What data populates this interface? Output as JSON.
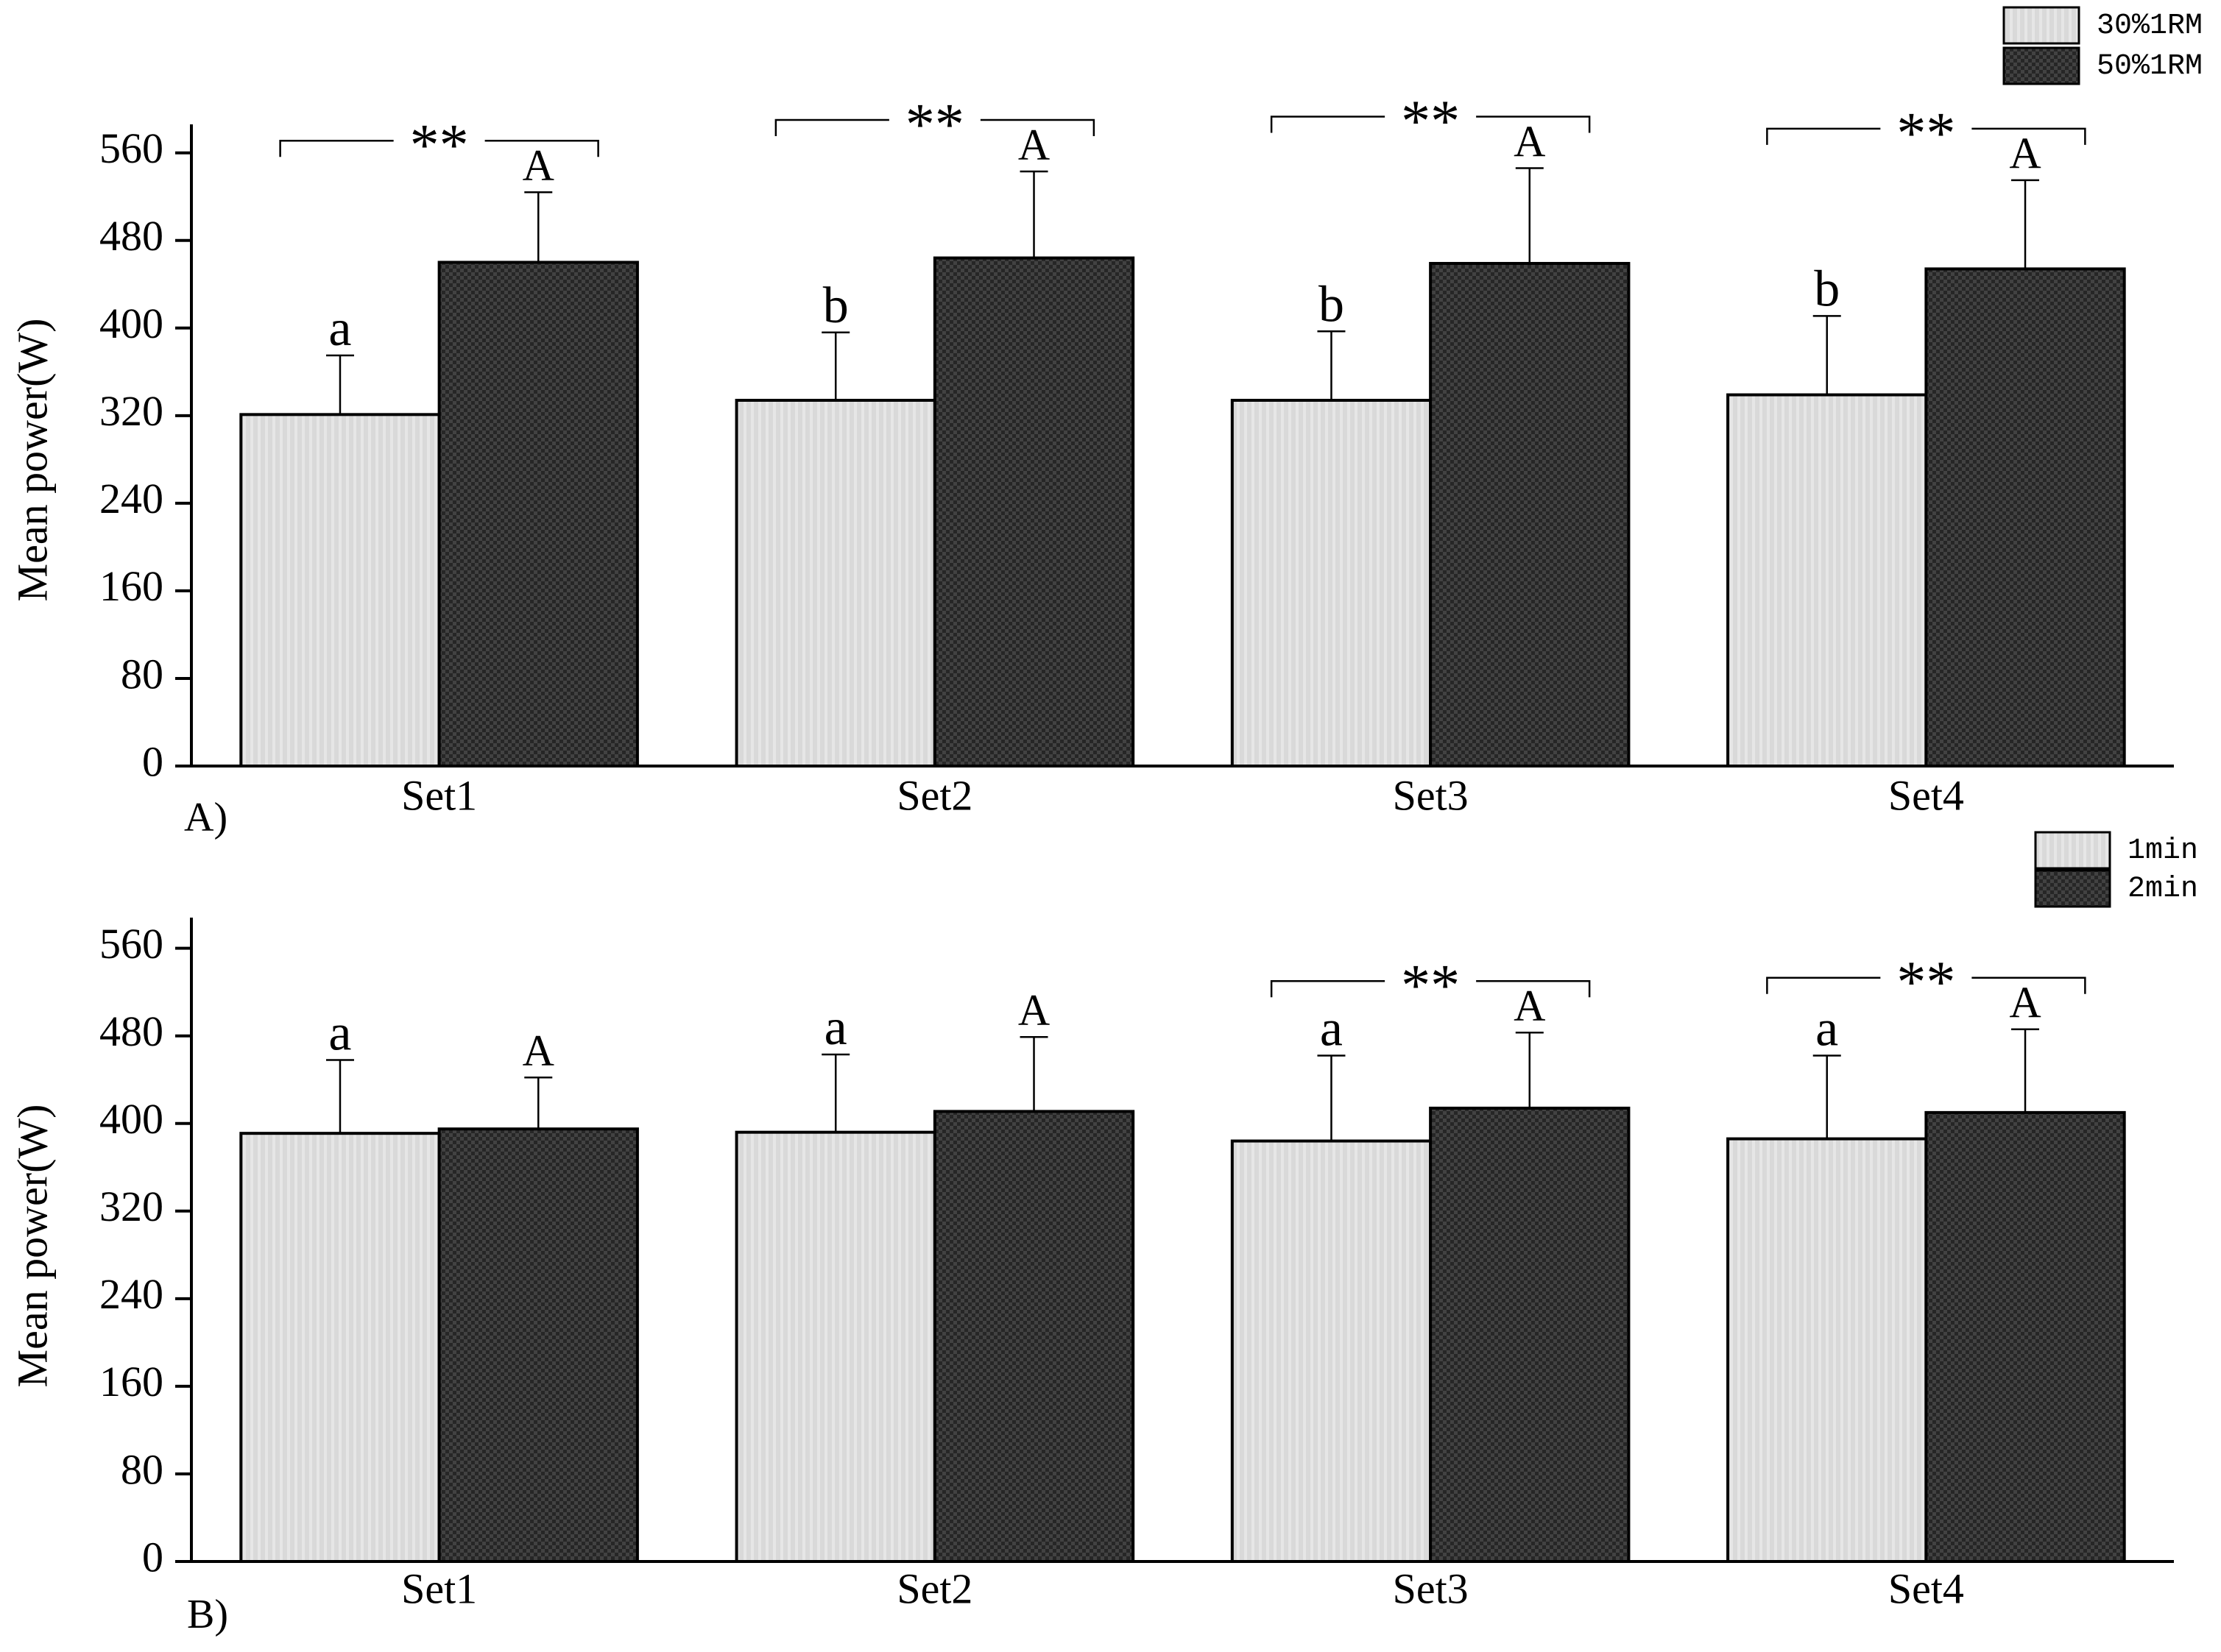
{
  "chart_data": [
    {
      "type": "bar",
      "panel_label": "A)",
      "y_label": "Mean power(W)",
      "categories": [
        "Set1",
        "Set2",
        "Set3",
        "Set4"
      ],
      "series": [
        {
          "name": "30%1RM",
          "color": "#d9d9d9",
          "pattern": "stripes",
          "values": [
            321,
            334,
            334,
            339
          ],
          "errors": [
            54,
            62,
            63,
            72
          ],
          "annotations": [
            "a",
            "b",
            "b",
            "b"
          ]
        },
        {
          "name": "50%1RM",
          "color": "#262626",
          "pattern": "checker",
          "values": [
            460,
            464,
            459,
            454
          ],
          "errors": [
            64,
            79,
            87,
            81
          ],
          "annotations": [
            "A",
            "A",
            "A",
            "A"
          ]
        }
      ],
      "significance": [
        "**",
        "**",
        "**",
        "**"
      ],
      "ylim": [
        0,
        586
      ],
      "yticks": [
        0,
        80,
        160,
        240,
        320,
        400,
        480,
        560
      ]
    },
    {
      "type": "bar",
      "panel_label": "B)",
      "y_label": "Mean power(W)",
      "categories": [
        "Set1",
        "Set2",
        "Set3",
        "Set4"
      ],
      "series": [
        {
          "name": "1min",
          "color": "#d9d9d9",
          "pattern": "stripes",
          "values": [
            391,
            392,
            384,
            386
          ],
          "errors": [
            67,
            71,
            78,
            76
          ],
          "annotations": [
            "a",
            "a",
            "a",
            "a"
          ]
        },
        {
          "name": "2min",
          "color": "#262626",
          "pattern": "checker",
          "values": [
            395,
            411,
            414,
            410
          ],
          "errors": [
            47,
            68,
            69,
            76
          ],
          "annotations": [
            "A",
            "A",
            "A",
            "A"
          ]
        }
      ],
      "significance": [
        null,
        null,
        "**",
        "**"
      ],
      "ylim": [
        0,
        588
      ],
      "yticks": [
        0,
        80,
        160,
        240,
        320,
        400,
        480,
        560
      ]
    }
  ]
}
